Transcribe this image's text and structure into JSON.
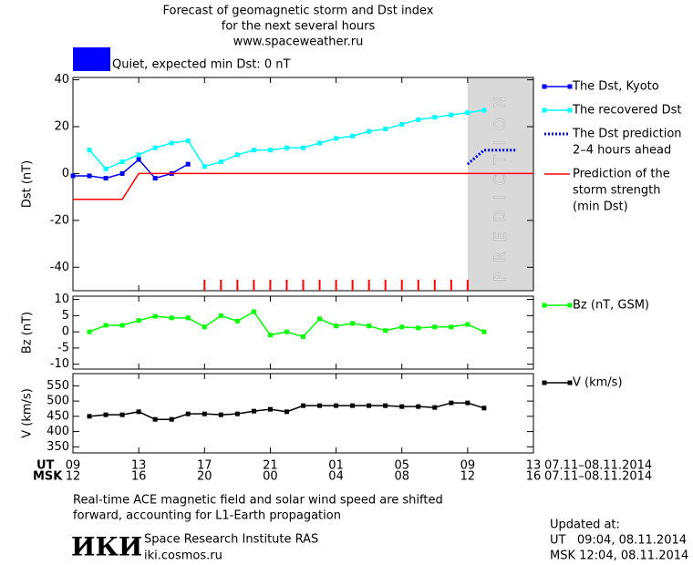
{
  "header": {
    "title_lines": [
      "Forecast of geomagnetic storm and Dst index",
      "for the next several hours",
      "www.spaceweather.ru"
    ],
    "status": {
      "color": "#0000ff",
      "text": "Quiet, expected min Dst: 0 nT"
    }
  },
  "time_axis": {
    "xlim": [
      0,
      28
    ],
    "ut_label": "UT",
    "msk_label": "MSK",
    "ticks": [
      {
        "value": 0,
        "ut": "09",
        "msk": "12"
      },
      {
        "value": 4,
        "ut": "13",
        "msk": "16"
      },
      {
        "value": 8,
        "ut": "17",
        "msk": "20"
      },
      {
        "value": 12,
        "ut": "21",
        "msk": "00"
      },
      {
        "value": 16,
        "ut": "01",
        "msk": "04"
      },
      {
        "value": 20,
        "ut": "05",
        "msk": "08"
      },
      {
        "value": 24,
        "ut": "09",
        "msk": "12"
      },
      {
        "value": 28,
        "ut": "13",
        "msk": "16"
      }
    ],
    "date_range": "07.11–08.11.2014"
  },
  "chart_data": [
    {
      "type": "line",
      "ylabel": "Dst (nT)",
      "ylim": [
        -50,
        41
      ],
      "yticks": [
        40,
        20,
        0,
        -20,
        -40
      ],
      "prediction_band": {
        "x": [
          24,
          28
        ],
        "label": "PREDICTION",
        "color": "#d9d9d9"
      },
      "red_marks_x": [
        8,
        9,
        10,
        11,
        12,
        13,
        14,
        15,
        16,
        17,
        18,
        19,
        20,
        21,
        22,
        23,
        24
      ],
      "series": [
        {
          "name": [
            "The Dst, Kyoto"
          ],
          "color": "#0000ff",
          "marker": "square",
          "dash": "solid",
          "x": [
            0,
            1,
            2,
            3,
            4,
            5,
            6,
            7
          ],
          "values": [
            -1,
            -1,
            -2,
            0,
            6,
            -2,
            0,
            4
          ]
        },
        {
          "name": [
            "The recovered Dst"
          ],
          "color": "#00ffff",
          "marker": "square",
          "dash": "solid",
          "x": [
            1,
            2,
            3,
            4,
            5,
            6,
            7,
            8,
            9,
            10,
            11,
            12,
            13,
            14,
            15,
            16,
            17,
            18,
            19,
            20,
            21,
            22,
            23,
            24,
            25
          ],
          "values": [
            10,
            2,
            5,
            8,
            11,
            13,
            14,
            3,
            5,
            8,
            10,
            10,
            11,
            11,
            13,
            15,
            16,
            18,
            19,
            21,
            23,
            24,
            25,
            26,
            27
          ]
        },
        {
          "name": [
            "The Dst prediction",
            "2–4 hours ahead"
          ],
          "color": "#0000ff",
          "marker": "none",
          "dash": "dotted",
          "x": [
            24,
            25,
            26,
            27
          ],
          "values": [
            4,
            10,
            10,
            10
          ]
        },
        {
          "name": [
            "Prediction of the",
            "storm strength",
            "(min Dst)"
          ],
          "color": "#ff0000",
          "marker": "none",
          "dash": "solid",
          "x": [
            0,
            3,
            4,
            28
          ],
          "values": [
            -11,
            -11,
            0,
            0
          ]
        }
      ]
    },
    {
      "type": "line",
      "ylabel": "Bz (nT)",
      "ylim": [
        -11.5,
        11
      ],
      "yticks": [
        10,
        5,
        0,
        -5,
        -10
      ],
      "series": [
        {
          "name": [
            "Bz (nT, GSM)"
          ],
          "color": "#00ff00",
          "marker": "square",
          "dash": "solid",
          "x": [
            1,
            2,
            3,
            4,
            5,
            6,
            7,
            8,
            9,
            10,
            11,
            12,
            13,
            14,
            15,
            16,
            17,
            18,
            19,
            20,
            21,
            22,
            23,
            24,
            25
          ],
          "values": [
            0,
            2,
            2,
            3.5,
            4.8,
            4.3,
            4.3,
            1.5,
            5,
            3.3,
            6.2,
            -1,
            0,
            -1.5,
            4,
            1.8,
            2.6,
            1.8,
            0.4,
            1.5,
            1.2,
            1.5,
            1.5,
            2.3,
            0
          ]
        }
      ]
    },
    {
      "type": "line",
      "ylabel": "V (km/s)",
      "ylim": [
        330,
        590
      ],
      "yticks": [
        550,
        500,
        450,
        400,
        350
      ],
      "series": [
        {
          "name": [
            "V (km/s)"
          ],
          "color": "#000000",
          "marker": "square",
          "dash": "solid",
          "x": [
            1,
            2,
            3,
            4,
            5,
            6,
            7,
            8,
            9,
            10,
            11,
            12,
            13,
            14,
            15,
            16,
            17,
            18,
            19,
            20,
            21,
            22,
            23,
            24,
            25
          ],
          "values": [
            450,
            455,
            455,
            465,
            440,
            440,
            458,
            458,
            455,
            458,
            467,
            473,
            465,
            485,
            485,
            485,
            485,
            485,
            485,
            482,
            482,
            479,
            494,
            494,
            477
          ]
        }
      ]
    }
  ],
  "footer": {
    "note_lines": [
      "Real-time ACE magnetic field and solar wind speed are shifted",
      "forward, accounting for L1-Earth propagation"
    ],
    "logo": "ИКИ",
    "institute": "Space Research Institute RAS",
    "website": "iki.cosmos.ru",
    "updated_label": "Updated at:",
    "updated_ut": "UT   09:04, 08.11.2014",
    "updated_msk": "MSK 12:04, 08.11.2014"
  }
}
